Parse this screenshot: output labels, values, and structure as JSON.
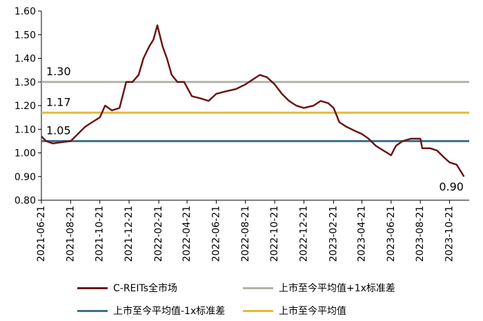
{
  "chart_data": {
    "type": "line",
    "ylim": [
      0.8,
      1.6
    ],
    "y_ticks": [
      "0.80",
      "0.90",
      "1.00",
      "1.10",
      "1.20",
      "1.30",
      "1.40",
      "1.50",
      "1.60"
    ],
    "x_ticks": [
      "2021-06-21",
      "2021-08-21",
      "2021-10-21",
      "2021-12-21",
      "2022-02-21",
      "2022-04-21",
      "2022-06-21",
      "2022-08-21",
      "2022-10-21",
      "2022-12-21",
      "2023-02-21",
      "2023-04-21",
      "2023-06-21",
      "2023-08-21",
      "2023-10-21"
    ],
    "x_range": [
      "2021-06-21",
      "2023-12-01"
    ],
    "series": [
      {
        "name": "C-REITs全市场",
        "color": "#6b1414",
        "points": [
          [
            "2021-06-21",
            1.07
          ],
          [
            "2021-07-01",
            1.05
          ],
          [
            "2021-07-15",
            1.04
          ],
          [
            "2021-08-01",
            1.045
          ],
          [
            "2021-08-21",
            1.05
          ],
          [
            "2021-09-05",
            1.08
          ],
          [
            "2021-09-20",
            1.11
          ],
          [
            "2021-10-05",
            1.13
          ],
          [
            "2021-10-21",
            1.15
          ],
          [
            "2021-11-01",
            1.2
          ],
          [
            "2021-11-15",
            1.18
          ],
          [
            "2021-12-01",
            1.19
          ],
          [
            "2021-12-15",
            1.3
          ],
          [
            "2021-12-28",
            1.3
          ],
          [
            "2022-01-10",
            1.33
          ],
          [
            "2022-01-20",
            1.4
          ],
          [
            "2022-02-01",
            1.45
          ],
          [
            "2022-02-10",
            1.48
          ],
          [
            "2022-02-18",
            1.54
          ],
          [
            "2022-03-01",
            1.45
          ],
          [
            "2022-03-10",
            1.4
          ],
          [
            "2022-03-20",
            1.33
          ],
          [
            "2022-04-01",
            1.3
          ],
          [
            "2022-04-15",
            1.3
          ],
          [
            "2022-05-01",
            1.24
          ],
          [
            "2022-05-20",
            1.23
          ],
          [
            "2022-06-05",
            1.22
          ],
          [
            "2022-06-21",
            1.25
          ],
          [
            "2022-07-10",
            1.26
          ],
          [
            "2022-08-01",
            1.27
          ],
          [
            "2022-08-21",
            1.29
          ],
          [
            "2022-09-05",
            1.31
          ],
          [
            "2022-09-20",
            1.33
          ],
          [
            "2022-10-05",
            1.32
          ],
          [
            "2022-10-21",
            1.29
          ],
          [
            "2022-11-05",
            1.25
          ],
          [
            "2022-11-20",
            1.22
          ],
          [
            "2022-12-05",
            1.2
          ],
          [
            "2022-12-21",
            1.19
          ],
          [
            "2023-01-10",
            1.2
          ],
          [
            "2023-01-25",
            1.22
          ],
          [
            "2023-02-10",
            1.21
          ],
          [
            "2023-02-21",
            1.19
          ],
          [
            "2023-03-05",
            1.13
          ],
          [
            "2023-03-20",
            1.11
          ],
          [
            "2023-04-10",
            1.09
          ],
          [
            "2023-04-21",
            1.08
          ],
          [
            "2023-05-05",
            1.06
          ],
          [
            "2023-05-20",
            1.03
          ],
          [
            "2023-06-05",
            1.01
          ],
          [
            "2023-06-21",
            0.99
          ],
          [
            "2023-07-01",
            1.03
          ],
          [
            "2023-07-15",
            1.05
          ],
          [
            "2023-08-01",
            1.06
          ],
          [
            "2023-08-21",
            1.06
          ],
          [
            "2023-08-25",
            1.02
          ],
          [
            "2023-09-10",
            1.02
          ],
          [
            "2023-09-25",
            1.01
          ],
          [
            "2023-10-10",
            0.98
          ],
          [
            "2023-10-21",
            0.96
          ],
          [
            "2023-11-05",
            0.95
          ],
          [
            "2023-11-20",
            0.9
          ]
        ],
        "end_label": "0.90"
      },
      {
        "name": "上市至今平均值+1x标准差",
        "color": "#b2b2a8",
        "value": 1.3,
        "label": "1.30"
      },
      {
        "name": "上市至今平均值-1x标准差",
        "color": "#3d6f86",
        "value": 1.05,
        "label": "1.05"
      },
      {
        "name": "上市至今平均值",
        "color": "#e8b838",
        "value": 1.17,
        "label": "1.17"
      }
    ],
    "legend_position": "bottom",
    "grid": false
  }
}
